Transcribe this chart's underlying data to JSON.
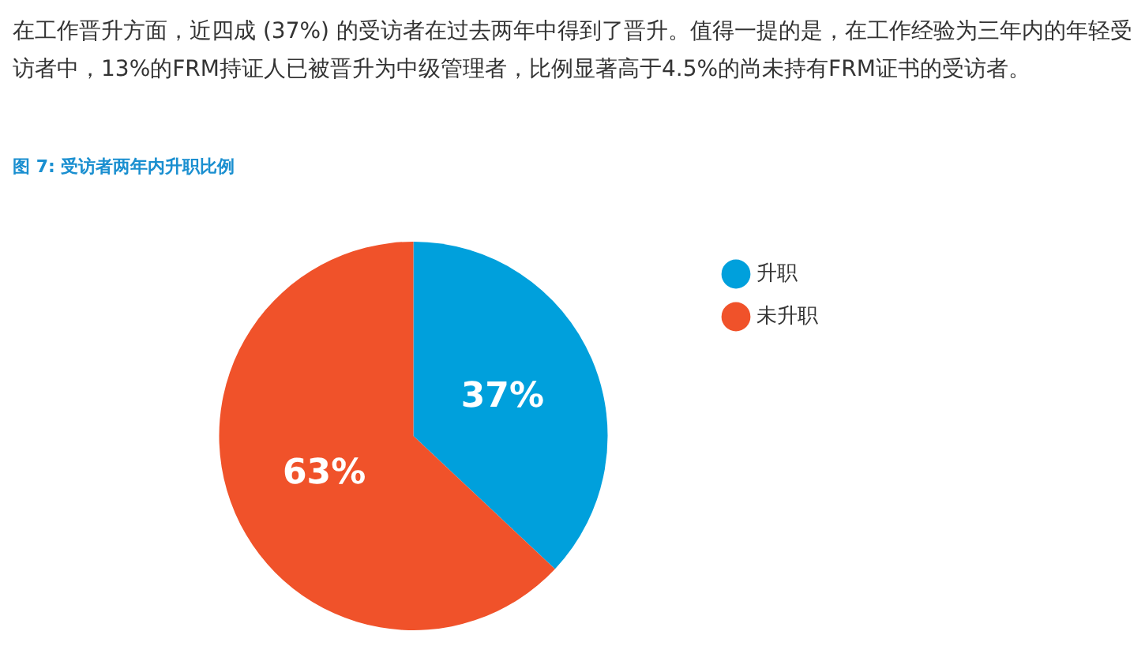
{
  "chart_data": {
    "type": "pie",
    "title": "图 7: 受访者两年内升职比例",
    "annotations": [
      "在工作晋升方面，近四成 (37%) 的受访者在过去两年中得到了晋升。值得一提的是，在工作经验为三年内的年轻受访者中，13%的FRM持证人已被晋升为中级管理者，比例显著高于4.5%的尚未持有FRM证书的受访者。"
    ],
    "categories": [
      "升职",
      "未升职"
    ],
    "values": [
      37,
      63
    ],
    "colors": [
      "#00a0dc",
      "#f0522a"
    ],
    "value_labels": [
      "37%",
      "63%"
    ],
    "legend": "right"
  }
}
